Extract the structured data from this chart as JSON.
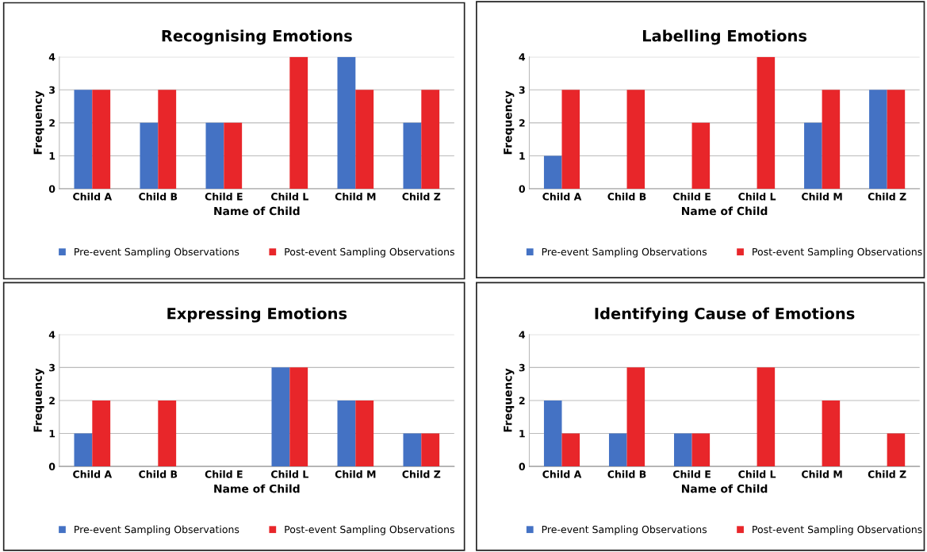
{
  "chart_data": [
    {
      "type": "bar",
      "title": "Recognising Emotions",
      "xlabel": "Name of Child",
      "ylabel": "Frequency",
      "categories": [
        "Child A",
        "Child B",
        "Child E",
        "Child L",
        "Child M",
        "Child Z"
      ],
      "ylim": [
        0,
        4
      ],
      "yticks": [
        0,
        1,
        2,
        3,
        4
      ],
      "grid": "y",
      "legend": "bottom",
      "series": [
        {
          "name": "Pre-event Sampling Observations",
          "color": "#4472c4",
          "values": [
            3,
            2,
            2,
            null,
            4,
            2
          ]
        },
        {
          "name": "Post-event Sampling Observations",
          "color": "#e8262a",
          "values": [
            3,
            3,
            2,
            4,
            3,
            3
          ]
        }
      ]
    },
    {
      "type": "bar",
      "title": "Labelling Emotions",
      "xlabel": "Name of Child",
      "ylabel": "Frequency",
      "categories": [
        "Child A",
        "Child B",
        "Child E",
        "Child L",
        "Child M",
        "Child Z"
      ],
      "ylim": [
        0,
        4
      ],
      "yticks": [
        0,
        1,
        2,
        3,
        4
      ],
      "grid": "y",
      "legend": "bottom",
      "series": [
        {
          "name": "Pre-event Sampling Observations",
          "color": "#4472c4",
          "values": [
            1,
            null,
            null,
            null,
            2,
            3
          ]
        },
        {
          "name": "Post-event Sampling Observations",
          "color": "#e8262a",
          "values": [
            3,
            3,
            2,
            4,
            3,
            3
          ]
        }
      ]
    },
    {
      "type": "bar",
      "title": "Expressing Emotions",
      "xlabel": "Name of Child",
      "ylabel": "Frequency",
      "categories": [
        "Child A",
        "Child B",
        "Child E",
        "Child L",
        "Child M",
        "Child Z"
      ],
      "ylim": [
        0,
        4
      ],
      "yticks": [
        0,
        1,
        2,
        3,
        4
      ],
      "grid": "y",
      "legend": "bottom",
      "series": [
        {
          "name": "Pre-event Sampling Observations",
          "color": "#4472c4",
          "values": [
            1,
            null,
            null,
            3,
            2,
            1
          ]
        },
        {
          "name": "Post-event Sampling Observations",
          "color": "#e8262a",
          "values": [
            2,
            2,
            null,
            3,
            2,
            1
          ]
        }
      ]
    },
    {
      "type": "bar",
      "title": "Identifying Cause of Emotions",
      "xlabel": "Name of Child",
      "ylabel": "Frequency",
      "categories": [
        "Child A",
        "Child B",
        "Child E",
        "Child L",
        "Child M",
        "Child Z"
      ],
      "ylim": [
        0,
        4
      ],
      "yticks": [
        0,
        1,
        2,
        3,
        4
      ],
      "grid": "y",
      "legend": "bottom",
      "series": [
        {
          "name": "Pre-event Sampling Observations",
          "color": "#4472c4",
          "values": [
            2,
            1,
            1,
            null,
            null,
            null
          ]
        },
        {
          "name": "Post-event Sampling Observations",
          "color": "#e8262a",
          "values": [
            1,
            3,
            1,
            3,
            2,
            1
          ]
        }
      ]
    }
  ]
}
